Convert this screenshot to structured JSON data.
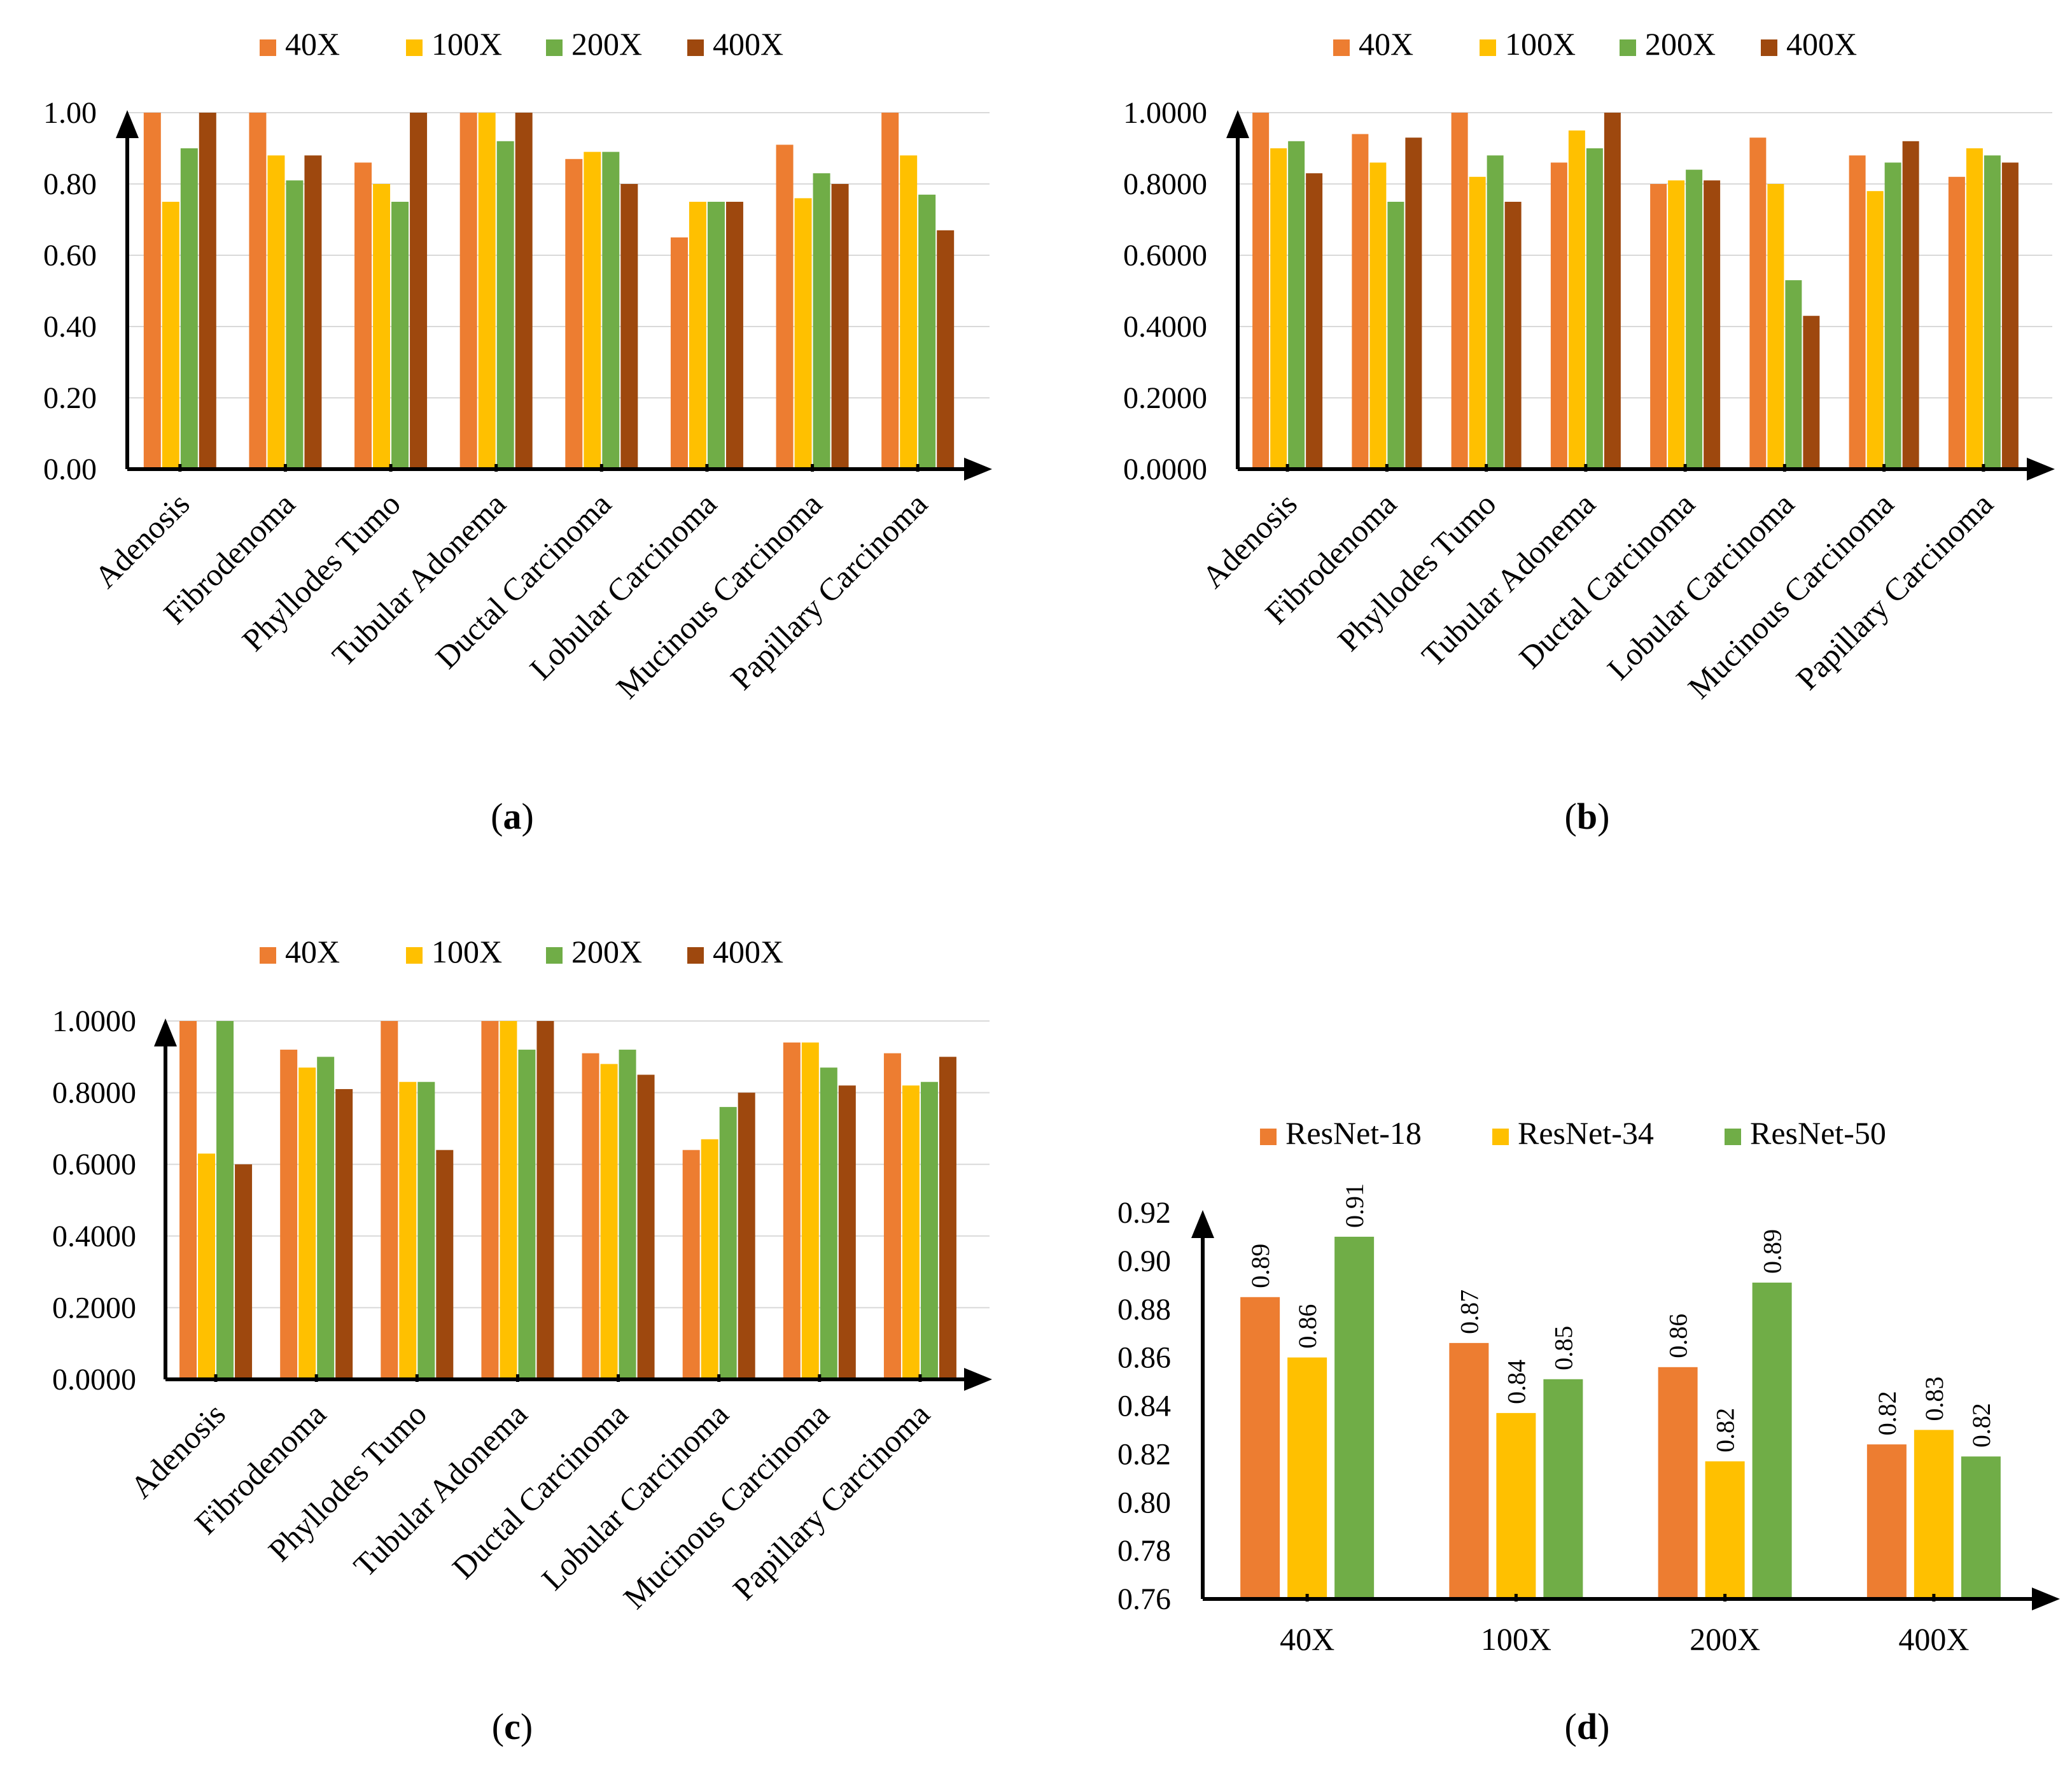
{
  "colors": {
    "orange": "#ED7D31",
    "yellow": "#FFC000",
    "green": "#70AD47",
    "brown": "#9E480E",
    "grid": "#D9D9D9",
    "axis": "#000000"
  },
  "chart_data": [
    {
      "id": "a",
      "type": "bar",
      "caption": "a",
      "categories": [
        "Adenosis",
        "Fibrodenoma",
        "Phyllodes Tumo",
        "Tubular Adonema",
        "Ductal Carcinoma",
        "Lobular Carcinoma",
        "Mucinous Carcinoma",
        "Papillary Carcinoma"
      ],
      "series": [
        {
          "name": "40X",
          "color": "#ED7D31",
          "values": [
            1.0,
            1.0,
            0.86,
            1.0,
            0.87,
            0.65,
            0.91,
            1.0
          ]
        },
        {
          "name": "100X",
          "color": "#FFC000",
          "values": [
            0.75,
            0.88,
            0.8,
            1.0,
            0.89,
            0.75,
            0.76,
            0.88
          ]
        },
        {
          "name": "200X",
          "color": "#70AD47",
          "values": [
            0.9,
            0.81,
            0.75,
            0.92,
            0.89,
            0.75,
            0.83,
            0.77
          ]
        },
        {
          "name": "400X",
          "color": "#9E480E",
          "values": [
            1.0,
            0.88,
            1.0,
            1.0,
            0.8,
            0.75,
            0.8,
            0.67
          ]
        }
      ],
      "ylim": [
        0,
        1
      ],
      "yticks": [
        "0.00",
        "0.20",
        "0.40",
        "0.60",
        "0.80",
        "1.00"
      ],
      "legend": "top",
      "grid": true
    },
    {
      "id": "b",
      "type": "bar",
      "caption": "b",
      "categories": [
        "Adenosis",
        "Fibrodenoma",
        "Phyllodes Tumo",
        "Tubular Adonema",
        "Ductal Carcinoma",
        "Lobular Carcinoma",
        "Mucinous Carcinoma",
        "Papillary Carcinoma"
      ],
      "series": [
        {
          "name": "40X",
          "color": "#ED7D31",
          "values": [
            1.0,
            0.94,
            1.0,
            0.86,
            0.8,
            0.93,
            0.88,
            0.82
          ]
        },
        {
          "name": "100X",
          "color": "#FFC000",
          "values": [
            0.9,
            0.86,
            0.82,
            0.95,
            0.81,
            0.8,
            0.78,
            0.9
          ]
        },
        {
          "name": "200X",
          "color": "#70AD47",
          "values": [
            0.92,
            0.75,
            0.88,
            0.9,
            0.84,
            0.53,
            0.86,
            0.88
          ]
        },
        {
          "name": "400X",
          "color": "#9E480E",
          "values": [
            0.83,
            0.93,
            0.75,
            1.0,
            0.81,
            0.43,
            0.92,
            0.86
          ]
        }
      ],
      "ylim": [
        0,
        1
      ],
      "yticks": [
        "0.0000",
        "0.2000",
        "0.4000",
        "0.6000",
        "0.8000",
        "1.0000"
      ],
      "legend": "top",
      "grid": true
    },
    {
      "id": "c",
      "type": "bar",
      "caption": "c",
      "categories": [
        "Adenosis",
        "Fibrodenoma",
        "Phyllodes Tumo",
        "Tubular Adonema",
        "Ductal Carcinoma",
        "Lobular Carcinoma",
        "Mucinous Carcinoma",
        "Papillary Carcinoma"
      ],
      "series": [
        {
          "name": "40X",
          "color": "#ED7D31",
          "values": [
            1.0,
            0.92,
            1.0,
            1.0,
            0.91,
            0.64,
            0.94,
            0.91
          ]
        },
        {
          "name": "100X",
          "color": "#FFC000",
          "values": [
            0.63,
            0.87,
            0.83,
            1.0,
            0.88,
            0.67,
            0.94,
            0.82
          ]
        },
        {
          "name": "200X",
          "color": "#70AD47",
          "values": [
            1.0,
            0.9,
            0.83,
            0.92,
            0.92,
            0.76,
            0.87,
            0.83
          ]
        },
        {
          "name": "400X",
          "color": "#9E480E",
          "values": [
            0.6,
            0.81,
            0.64,
            1.0,
            0.85,
            0.8,
            0.82,
            0.9
          ]
        }
      ],
      "ylim": [
        0,
        1
      ],
      "yticks": [
        "0.0000",
        "0.2000",
        "0.4000",
        "0.6000",
        "0.8000",
        "1.0000"
      ],
      "legend": "top",
      "grid": true
    },
    {
      "id": "d",
      "type": "bar",
      "caption": "d",
      "categories": [
        "40X",
        "100X",
        "200X",
        "400X"
      ],
      "series": [
        {
          "name": "ResNet-18",
          "color": "#ED7D31",
          "values": [
            0.885,
            0.866,
            0.856,
            0.824
          ],
          "labels": [
            "0.89",
            "0.87",
            "0.86",
            "0.82"
          ]
        },
        {
          "name": "ResNet-34",
          "color": "#FFC000",
          "values": [
            0.86,
            0.837,
            0.817,
            0.83
          ],
          "labels": [
            "0.86",
            "0.84",
            "0.82",
            "0.83"
          ]
        },
        {
          "name": "ResNet-50",
          "color": "#70AD47",
          "values": [
            0.91,
            0.851,
            0.891,
            0.819
          ],
          "labels": [
            "0.91",
            "0.85",
            "0.89",
            "0.82"
          ]
        }
      ],
      "ylim": [
        0.76,
        0.92
      ],
      "yticks": [
        "0.76",
        "0.78",
        "0.80",
        "0.82",
        "0.84",
        "0.86",
        "0.88",
        "0.90",
        "0.92"
      ],
      "legend": "top",
      "grid": false
    }
  ]
}
